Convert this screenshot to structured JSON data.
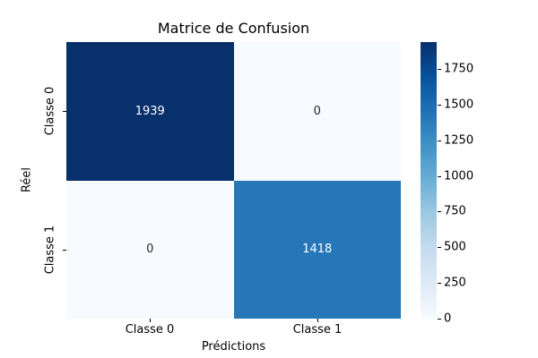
{
  "figure": {
    "background": "#ffffff"
  },
  "chart_data": {
    "type": "heatmap",
    "title": "Matrice de Confusion",
    "xlabel": "Prédictions",
    "ylabel": "Réel",
    "x_categories": [
      "Classe 0",
      "Classe 1"
    ],
    "y_categories": [
      "Classe 0",
      "Classe 1"
    ],
    "values": [
      [
        1939,
        0
      ],
      [
        0,
        1418
      ]
    ],
    "vmin": 0,
    "vmax": 1939,
    "colormap": "Blues",
    "colorbar_ticks": [
      0,
      250,
      500,
      750,
      1000,
      1250,
      1500,
      1750
    ],
    "colorbar_position": "right",
    "grid": false,
    "annotations": [
      "1939",
      "0",
      "0",
      "1418"
    ],
    "colors": {
      "cell_max": "#08306b",
      "cell_min": "#f7fbff",
      "cell_1418": "#2676b8",
      "annotation_on_dark": "#ffffff",
      "annotation_on_light": "#262626",
      "axis_text": "#000000"
    }
  }
}
